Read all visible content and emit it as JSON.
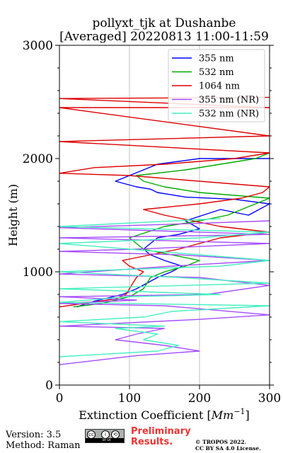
{
  "chart_data": {
    "type": "line",
    "title": "pollyxt_tjk at Dushanbe",
    "subtitle": "[Averaged] 20220813 11:00-11:59",
    "xlabel_prefix": "Extinction Coefficient [",
    "xlabel_unit": "Mm",
    "xlabel_exp": "−1",
    "xlabel_suffix": "]",
    "ylabel": "Height (m)",
    "xlim": [
      0,
      300
    ],
    "ylim": [
      0,
      3000
    ],
    "xticks": [
      0,
      100,
      200,
      300
    ],
    "yticks": [
      0,
      1000,
      2000,
      3000
    ],
    "grid": true,
    "legend_position": "top-right",
    "series": [
      {
        "name": "355 nm",
        "color": "#0000ff",
        "x": [
          25,
          50,
          90,
          110,
          125,
          140,
          160,
          175,
          150,
          130,
          120,
          140,
          170,
          200,
          180,
          230,
          270,
          300,
          250,
          180,
          160,
          140,
          130,
          110,
          80,
          140,
          200,
          300
        ],
        "y": [
          690,
          740,
          800,
          850,
          900,
          950,
          1000,
          1050,
          1100,
          1150,
          1200,
          1300,
          1330,
          1380,
          1450,
          1550,
          1500,
          1600,
          1640,
          1660,
          1680,
          1700,
          1730,
          1750,
          1800,
          1950,
          2000,
          2000
        ]
      },
      {
        "name": "532 nm",
        "color": "#00aa00",
        "x": [
          20,
          60,
          100,
          120,
          125,
          130,
          150,
          180,
          200,
          160,
          120,
          100,
          150,
          200,
          240,
          280,
          300,
          200,
          150,
          120,
          110,
          180,
          230,
          280,
          300
        ],
        "y": [
          690,
          720,
          780,
          850,
          900,
          950,
          1000,
          1050,
          1100,
          1150,
          1200,
          1300,
          1400,
          1450,
          1500,
          1600,
          1650,
          1700,
          1750,
          1800,
          1850,
          1900,
          1950,
          2000,
          2050
        ]
      },
      {
        "name": "1064 nm",
        "color": "#dd0000",
        "x": [
          0,
          80,
          95,
          100,
          105,
          110,
          120,
          100,
          90,
          130,
          170,
          230,
          300,
          230,
          150,
          120,
          200,
          260,
          290,
          300,
          100,
          0,
          50,
          150,
          250,
          300,
          0,
          300,
          0,
          300,
          0,
          300
        ],
        "y": [
          690,
          760,
          800,
          850,
          900,
          950,
          1000,
          1050,
          1100,
          1150,
          1200,
          1300,
          1350,
          1400,
          1500,
          1550,
          1600,
          1650,
          1700,
          1750,
          1850,
          1870,
          1920,
          1950,
          2000,
          2050,
          2150,
          2200,
          2450,
          2450,
          2530,
          2540
        ]
      },
      {
        "name": "355 nm (NR)",
        "color": "#a64dff",
        "x": [
          0,
          110,
          200,
          150,
          80,
          110,
          150,
          0,
          200,
          300,
          150,
          0,
          110,
          0,
          210,
          300,
          200,
          0,
          160,
          300,
          170,
          0,
          110,
          300,
          0,
          210,
          300,
          0,
          160,
          300
        ],
        "y": [
          180,
          260,
          300,
          350,
          400,
          450,
          500,
          520,
          580,
          620,
          700,
          720,
          750,
          780,
          800,
          880,
          950,
          980,
          1050,
          1100,
          1150,
          1180,
          1200,
          1250,
          1300,
          1320,
          1330,
          1390,
          1420,
          1450
        ]
      },
      {
        "name": "532 nm (NR)",
        "color": "#44f0c0",
        "x": [
          0,
          140,
          170,
          120,
          140,
          80,
          150,
          0,
          120,
          160,
          300,
          0,
          100,
          230,
          0,
          300,
          170,
          0,
          230,
          300,
          100,
          0,
          200,
          300,
          0,
          230
        ],
        "y": [
          250,
          300,
          350,
          400,
          450,
          500,
          520,
          560,
          600,
          650,
          700,
          730,
          780,
          800,
          850,
          900,
          950,
          1000,
          1050,
          1100,
          1200,
          1250,
          1300,
          1350,
          1400,
          1470
        ]
      }
    ]
  },
  "footer": {
    "version": "Version: 3.5",
    "method": "Method: Raman",
    "preliminary_line1": "Preliminary",
    "preliminary_line2": "Results.",
    "preliminary_color": "#ee3333",
    "copyright_line1": "© TROPOS 2022.",
    "copyright_line2": "CC BY SA 4.0 License.",
    "cc_badge_text": "BY SA"
  }
}
